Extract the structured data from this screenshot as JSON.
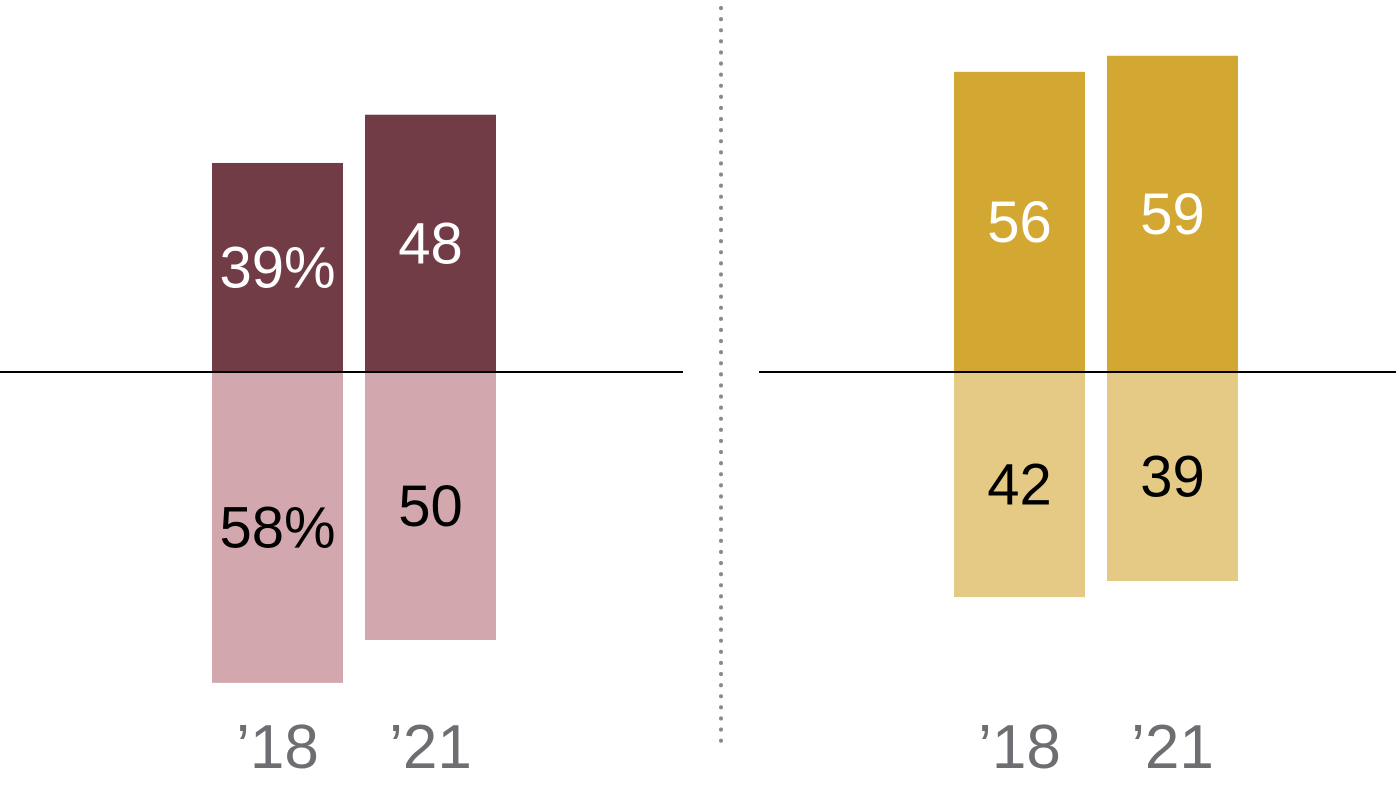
{
  "chart_data": [
    {
      "type": "bar",
      "categories": [
        "’18",
        "’21"
      ],
      "series": [
        {
          "values": [
            39,
            48
          ],
          "labels": [
            "39%",
            "48"
          ],
          "color": "#723c47",
          "label_color": "#ffffff"
        },
        {
          "values": [
            58,
            50
          ],
          "labels": [
            "58%",
            "50"
          ],
          "color": "#d2a8ae",
          "label_color": "#000000"
        }
      ],
      "stacking": "diverging"
    },
    {
      "type": "bar",
      "categories": [
        "’18",
        "’21"
      ],
      "series": [
        {
          "values": [
            56,
            59
          ],
          "labels": [
            "56",
            "59"
          ],
          "color": "#d2a833",
          "label_color": "#ffffff"
        },
        {
          "values": [
            42,
            39
          ],
          "labels": [
            "42",
            "39"
          ],
          "color": "#e4ca84",
          "label_color": "#000000"
        }
      ],
      "stacking": "diverging"
    }
  ]
}
